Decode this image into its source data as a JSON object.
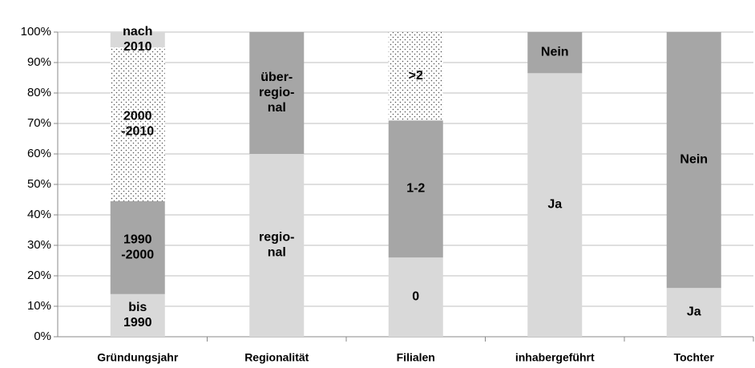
{
  "chart_data": {
    "type": "stacked_bar",
    "categories": [
      "Gründungsjahr",
      "Regionalität",
      "Filialen",
      "inhabergeführt",
      "Tochter"
    ],
    "stacks": [
      {
        "segments": [
          {
            "label": [
              "bis",
              "1990"
            ],
            "value": 14,
            "color": "#d9d9d9"
          },
          {
            "label": [
              "1990",
              "-2000"
            ],
            "value": 30.5,
            "color": "#a6a6a6"
          },
          {
            "label": [
              "2000",
              "-2010"
            ],
            "value": 50.5,
            "color": "#ffffff",
            "pattern": "dotted"
          },
          {
            "label": [
              "nach",
              "2010"
            ],
            "value": 5,
            "color": "#d9d9d9"
          }
        ]
      },
      {
        "segments": [
          {
            "label": [
              "regio-",
              "nal"
            ],
            "value": 60,
            "color": "#d9d9d9"
          },
          {
            "label": [
              "über-",
              "regio-",
              "nal"
            ],
            "value": 40,
            "color": "#a6a6a6"
          }
        ]
      },
      {
        "segments": [
          {
            "label": [
              "0"
            ],
            "value": 26,
            "color": "#d9d9d9"
          },
          {
            "label": [
              "1-2"
            ],
            "value": 45,
            "color": "#a6a6a6"
          },
          {
            "label": [
              ">2"
            ],
            "value": 29,
            "color": "#ffffff",
            "pattern": "dotted"
          }
        ]
      },
      {
        "segments": [
          {
            "label": [
              "Ja"
            ],
            "value": 86.5,
            "color": "#d9d9d9"
          },
          {
            "label": [
              "Nein"
            ],
            "value": 13.5,
            "color": "#a6a6a6"
          }
        ]
      },
      {
        "segments": [
          {
            "label": [
              "Ja"
            ],
            "value": 16,
            "color": "#d9d9d9"
          },
          {
            "label": [
              "Nein"
            ],
            "value": 84,
            "color": "#a6a6a6"
          }
        ]
      }
    ],
    "ylim": [
      0,
      100
    ],
    "yticks": [
      {
        "value": 0,
        "label": "0%"
      },
      {
        "value": 10,
        "label": "10%"
      },
      {
        "value": 20,
        "label": "20%"
      },
      {
        "value": 30,
        "label": "30%"
      },
      {
        "value": 40,
        "label": "40%"
      },
      {
        "value": 50,
        "label": "50%"
      },
      {
        "value": 60,
        "label": "60%"
      },
      {
        "value": 70,
        "label": "70%"
      },
      {
        "value": 80,
        "label": "80%"
      },
      {
        "value": 90,
        "label": "90%"
      },
      {
        "value": 100,
        "label": "100%"
      }
    ],
    "grid": true
  }
}
